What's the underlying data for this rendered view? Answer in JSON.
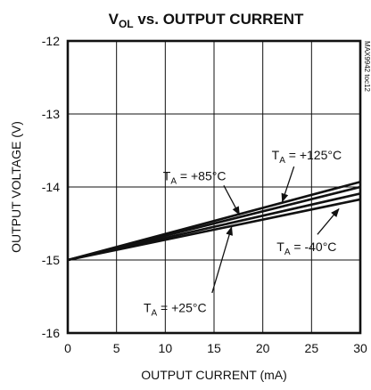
{
  "chart_data": {
    "type": "line",
    "title": "V_OL vs. OUTPUT CURRENT",
    "title_main": "V",
    "title_sub": "OL",
    "title_rest": " vs. OUTPUT CURRENT",
    "side_code": "MAX9942 toc12",
    "xlabel": "OUTPUT CURRENT (mA)",
    "ylabel": "OUTPUT VOLTAGE (V)",
    "xlim": [
      0,
      30
    ],
    "ylim": [
      -16,
      -12
    ],
    "xticks": [
      0,
      5,
      10,
      15,
      20,
      25,
      30
    ],
    "yticks": [
      -12,
      -13,
      -14,
      -15,
      -16
    ],
    "xtick_labels": [
      "0",
      "5",
      "10",
      "15",
      "20",
      "25",
      "30"
    ],
    "ytick_labels": [
      "-12",
      "-13",
      "-14",
      "-15",
      "-16"
    ],
    "grid": true,
    "series": [
      {
        "name": "T_A = +125°C",
        "x": [
          0,
          30
        ],
        "y": [
          -15.0,
          -13.93
        ]
      },
      {
        "name": "T_A = +85°C",
        "x": [
          0,
          30
        ],
        "y": [
          -15.0,
          -14.0
        ]
      },
      {
        "name": "T_A = +25°C",
        "x": [
          0,
          30
        ],
        "y": [
          -15.0,
          -14.09
        ]
      },
      {
        "name": "T_A = -40°C",
        "x": [
          0,
          30
        ],
        "y": [
          -15.0,
          -14.17
        ]
      }
    ],
    "annotations": [
      {
        "text_main": "T",
        "text_sub": "A",
        "text_rest": " = +125°C",
        "label_x": 24.5,
        "label_y": -13.56,
        "arrow_from": [
          23.2,
          -13.72
        ],
        "arrow_to": [
          22.0,
          -14.2
        ]
      },
      {
        "text_main": "T",
        "text_sub": "A",
        "text_rest": " = +85°C",
        "label_x": 13.0,
        "label_y": -13.85,
        "arrow_from": [
          16.0,
          -13.98
        ],
        "arrow_to": [
          17.6,
          -14.38
        ]
      },
      {
        "text_main": "T",
        "text_sub": "A",
        "text_rest": " = +25°C",
        "label_x": 11.0,
        "label_y": -15.65,
        "arrow_from": [
          14.8,
          -15.45
        ],
        "arrow_to": [
          16.8,
          -14.55
        ]
      },
      {
        "text_main": "T",
        "text_sub": "A",
        "text_rest": " = -40°C",
        "label_x": 24.5,
        "label_y": -14.82,
        "arrow_from": [
          25.6,
          -14.65
        ],
        "arrow_to": [
          27.8,
          -14.3
        ]
      }
    ]
  }
}
